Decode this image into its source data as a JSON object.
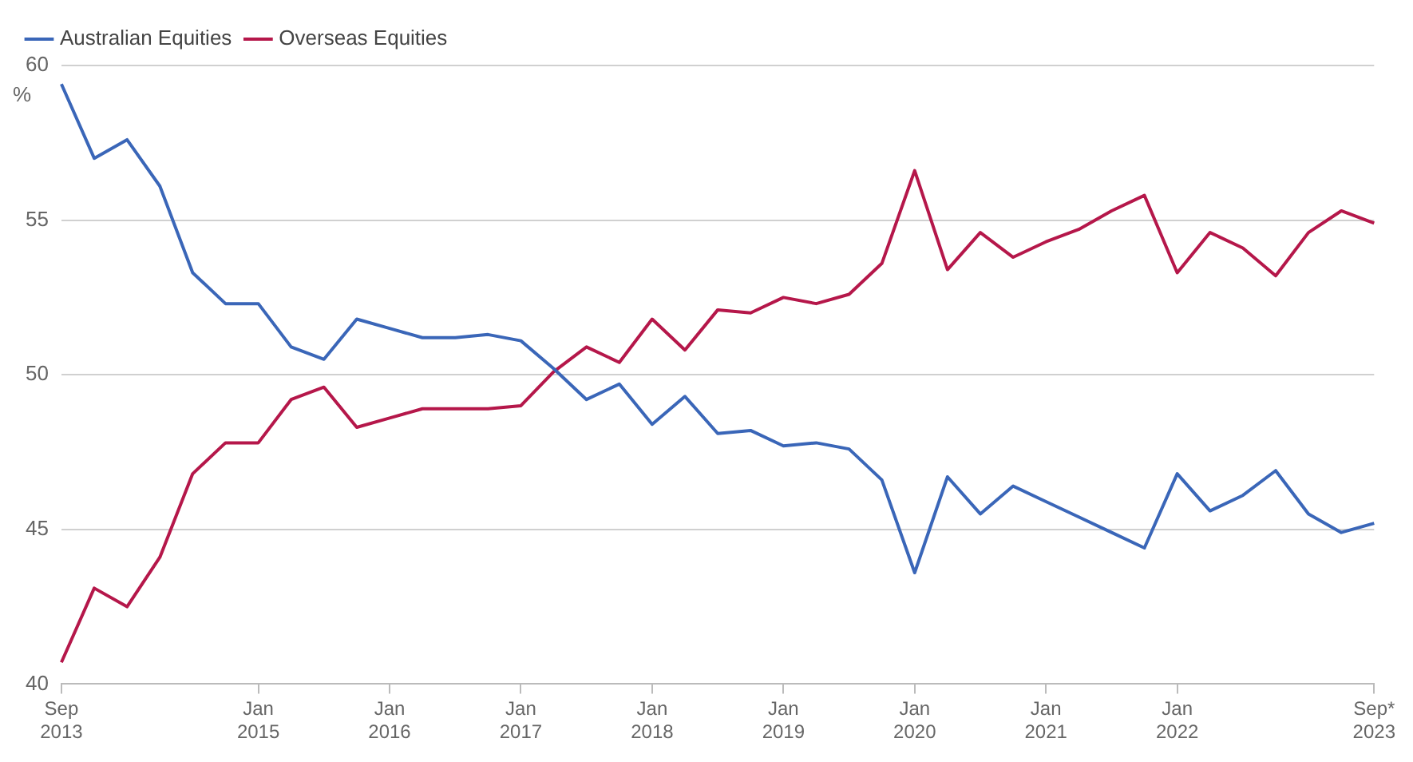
{
  "chart_data": {
    "type": "line",
    "ylabel": "%",
    "categories": [
      "Sep 2013",
      null,
      null,
      null,
      null,
      null,
      "Jan 2015",
      null,
      null,
      null,
      "Jan 2016",
      null,
      null,
      null,
      "Jan 2017",
      null,
      null,
      null,
      "Jan 2018",
      null,
      null,
      null,
      "Jan 2019",
      null,
      null,
      null,
      "Jan 2020",
      null,
      null,
      null,
      "Jan 2021",
      null,
      null,
      null,
      "Jan 2022",
      null,
      null,
      null,
      null,
      null,
      "Sep* 2023"
    ],
    "series": [
      {
        "name": "Australian Equities",
        "color": "#3a66b8",
        "values": [
          59.4,
          57,
          57.6,
          56.1,
          53.3,
          52.3,
          52.3,
          50.9,
          50.5,
          51.8,
          51.5,
          51.2,
          51.2,
          51.3,
          51.1,
          50.2,
          49.2,
          49.7,
          48.4,
          49.3,
          48.1,
          48.2,
          47.7,
          47.8,
          47.6,
          46.6,
          43.6,
          46.7,
          45.5,
          46.4,
          45.9,
          45.4,
          44.9,
          44.4,
          46.8,
          45.6,
          46.1,
          46.9,
          45.5,
          44.9,
          45.2
        ]
      },
      {
        "name": "Overseas Equities",
        "color": "#b5174a",
        "values": [
          40.7,
          43.1,
          42.5,
          44.1,
          46.8,
          47.8,
          47.8,
          49.2,
          49.6,
          48.3,
          48.6,
          48.9,
          48.9,
          48.9,
          49,
          50.1,
          50.9,
          50.4,
          51.8,
          50.8,
          52.1,
          52,
          52.5,
          52.3,
          52.6,
          53.6,
          56.6,
          53.4,
          54.6,
          53.8,
          54.3,
          54.7,
          55.3,
          55.8,
          53.3,
          54.6,
          54.1,
          53.2,
          54.6,
          55.3,
          54.9
        ]
      }
    ],
    "ylim": [
      40,
      60
    ],
    "yticks": [
      40,
      45,
      50,
      55,
      60
    ],
    "grid": "y",
    "legend": "top left",
    "marker": "none",
    "line_style": "solid"
  }
}
